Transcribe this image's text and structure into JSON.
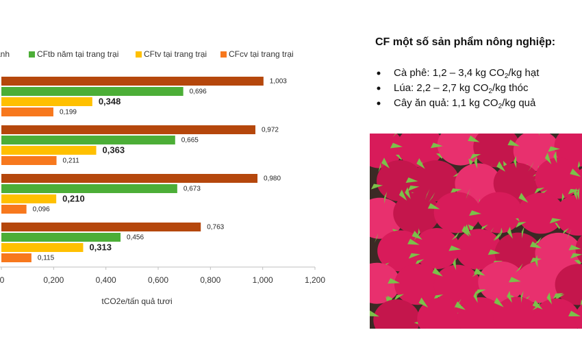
{
  "chart_data": {
    "type": "hbar",
    "categories": [
      null,
      null,
      null,
      null
    ],
    "series": [
      {
        "name": "ạnh",
        "color": "#b5470c",
        "values": [
          1.003,
          0.972,
          0.98,
          0.763
        ],
        "value_labels": [
          "1,003",
          "0,972",
          "0,980",
          "0,763"
        ]
      },
      {
        "name": "CFtb năm tại trang trại",
        "color": "#4cae37",
        "values": [
          0.696,
          0.665,
          0.673,
          0.456
        ],
        "value_labels": [
          "0,696",
          "0,665",
          "0,673",
          "0,456"
        ]
      },
      {
        "name": "CFtv tại trang trại",
        "color": "#ffc000",
        "values": [
          0.348,
          0.363,
          0.21,
          0.313
        ],
        "value_labels": [
          "0,348",
          "0,363",
          "0,210",
          "0,313"
        ]
      },
      {
        "name": "CFcv tại trang trại",
        "color": "#f7781d",
        "values": [
          0.199,
          0.211,
          0.096,
          0.115
        ],
        "value_labels": [
          "0,199",
          "0,211",
          "0,096",
          "0,115"
        ]
      }
    ],
    "xlim": [
      0,
      1.2
    ],
    "xticks": [
      0,
      {
        "value": 0.2,
        "label": "0,200"
      },
      {
        "value": 0.4,
        "label": "0,400"
      },
      {
        "value": 0.6,
        "label": "0,600"
      },
      {
        "value": 0.8,
        "label": "0,800"
      },
      {
        "value": 1.0,
        "label": "1,000"
      },
      {
        "value": 1.2,
        "label": "1,200"
      }
    ],
    "xlabel": "tCO2e/tấn quả tươi"
  },
  "notes": {
    "title": "CF một số sản phẩm nông nghiệp:",
    "items": [
      [
        "Cà phê: 1,2 – 3,4 kg CO",
        "2",
        "/kg hạt"
      ],
      [
        "Lúa: 2,2 – 2,7 kg CO",
        "2",
        "/kg thóc"
      ],
      [
        "Cây ăn quả: 1,1 kg CO",
        "2",
        "/kg quả"
      ]
    ]
  }
}
